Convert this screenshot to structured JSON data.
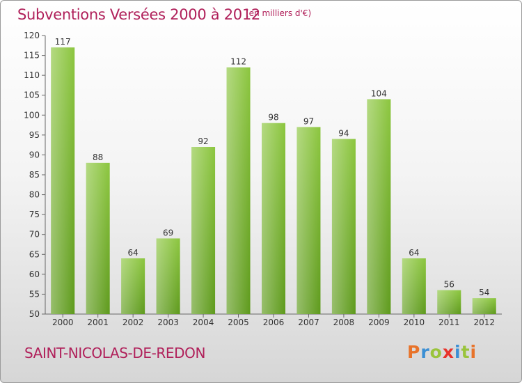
{
  "header": {
    "title": "Subventions Versées 2000 à 2012",
    "unit": "(en milliers d'€)"
  },
  "footer": {
    "place": "SAINT-NICOLAS-DE-REDON",
    "logo_letters": [
      "P",
      "r",
      "o",
      "x",
      "i",
      "t",
      "i"
    ],
    "logo_colors": [
      "#e8732a",
      "#3b8fd4",
      "#9ac43c",
      "#e8322a",
      "#3b8fd4",
      "#9ac43c",
      "#e8732a"
    ]
  },
  "chart_data": {
    "type": "bar",
    "title": "Subventions Versées 2000 à 2012",
    "subtitle": "(en milliers d'€)",
    "categories": [
      "2000",
      "2001",
      "2002",
      "2003",
      "2004",
      "2005",
      "2006",
      "2007",
      "2008",
      "2009",
      "2010",
      "2011",
      "2012"
    ],
    "values": [
      117,
      88,
      64,
      69,
      92,
      112,
      98,
      97,
      94,
      104,
      64,
      56,
      54
    ],
    "ylim": [
      50,
      120
    ],
    "yticks": [
      50,
      55,
      60,
      65,
      70,
      75,
      80,
      85,
      90,
      95,
      100,
      105,
      110,
      115,
      120
    ],
    "grid": false,
    "bar_color": "#8cc63f",
    "bar_color_dark": "#5e9a1c"
  }
}
